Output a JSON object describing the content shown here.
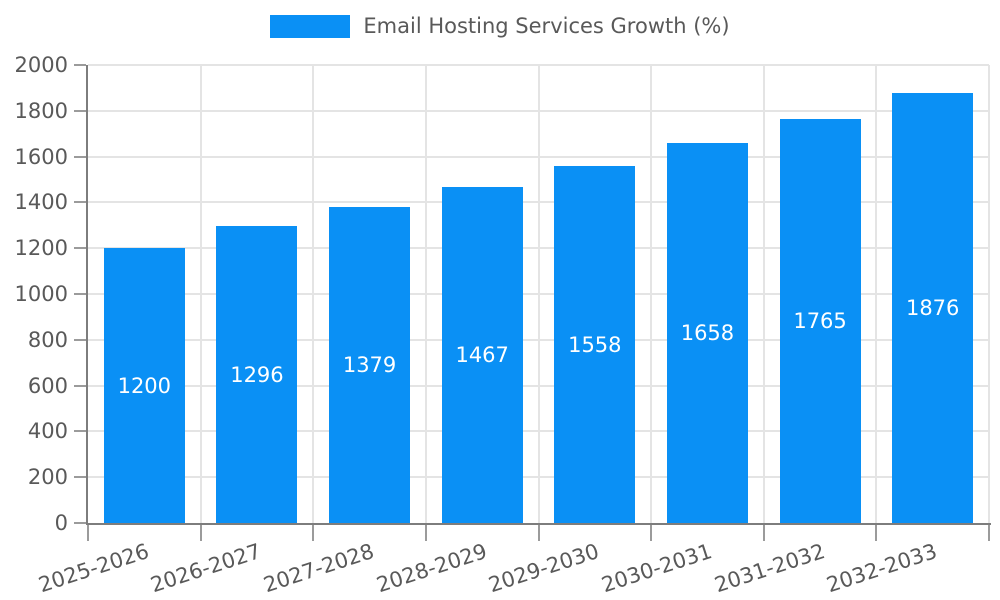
{
  "chart_data": {
    "type": "bar",
    "title": "Email Hosting Services Growth (%)",
    "categories": [
      "2025-2026",
      "2026-2027",
      "2027-2028",
      "2028-2029",
      "2029-2030",
      "2030-2031",
      "2031-2032",
      "2032-2033"
    ],
    "values": [
      1200,
      1296,
      1379,
      1467,
      1558,
      1658,
      1765,
      1876
    ],
    "xlabel": "",
    "ylabel": "",
    "ylim": [
      0,
      2000
    ],
    "yticks": [
      0,
      200,
      400,
      600,
      800,
      1000,
      1200,
      1400,
      1600,
      1800,
      2000
    ],
    "grid": "on",
    "legend_position": "top-center",
    "colors": {
      "bar": "#0a90f5",
      "bar_value_label": "#ffffff",
      "axis_text": "#595959",
      "gridline": "#e4e4e4",
      "spine": "#7d7d7d",
      "tick": "#9b9b9b",
      "background": "#ffffff"
    }
  }
}
